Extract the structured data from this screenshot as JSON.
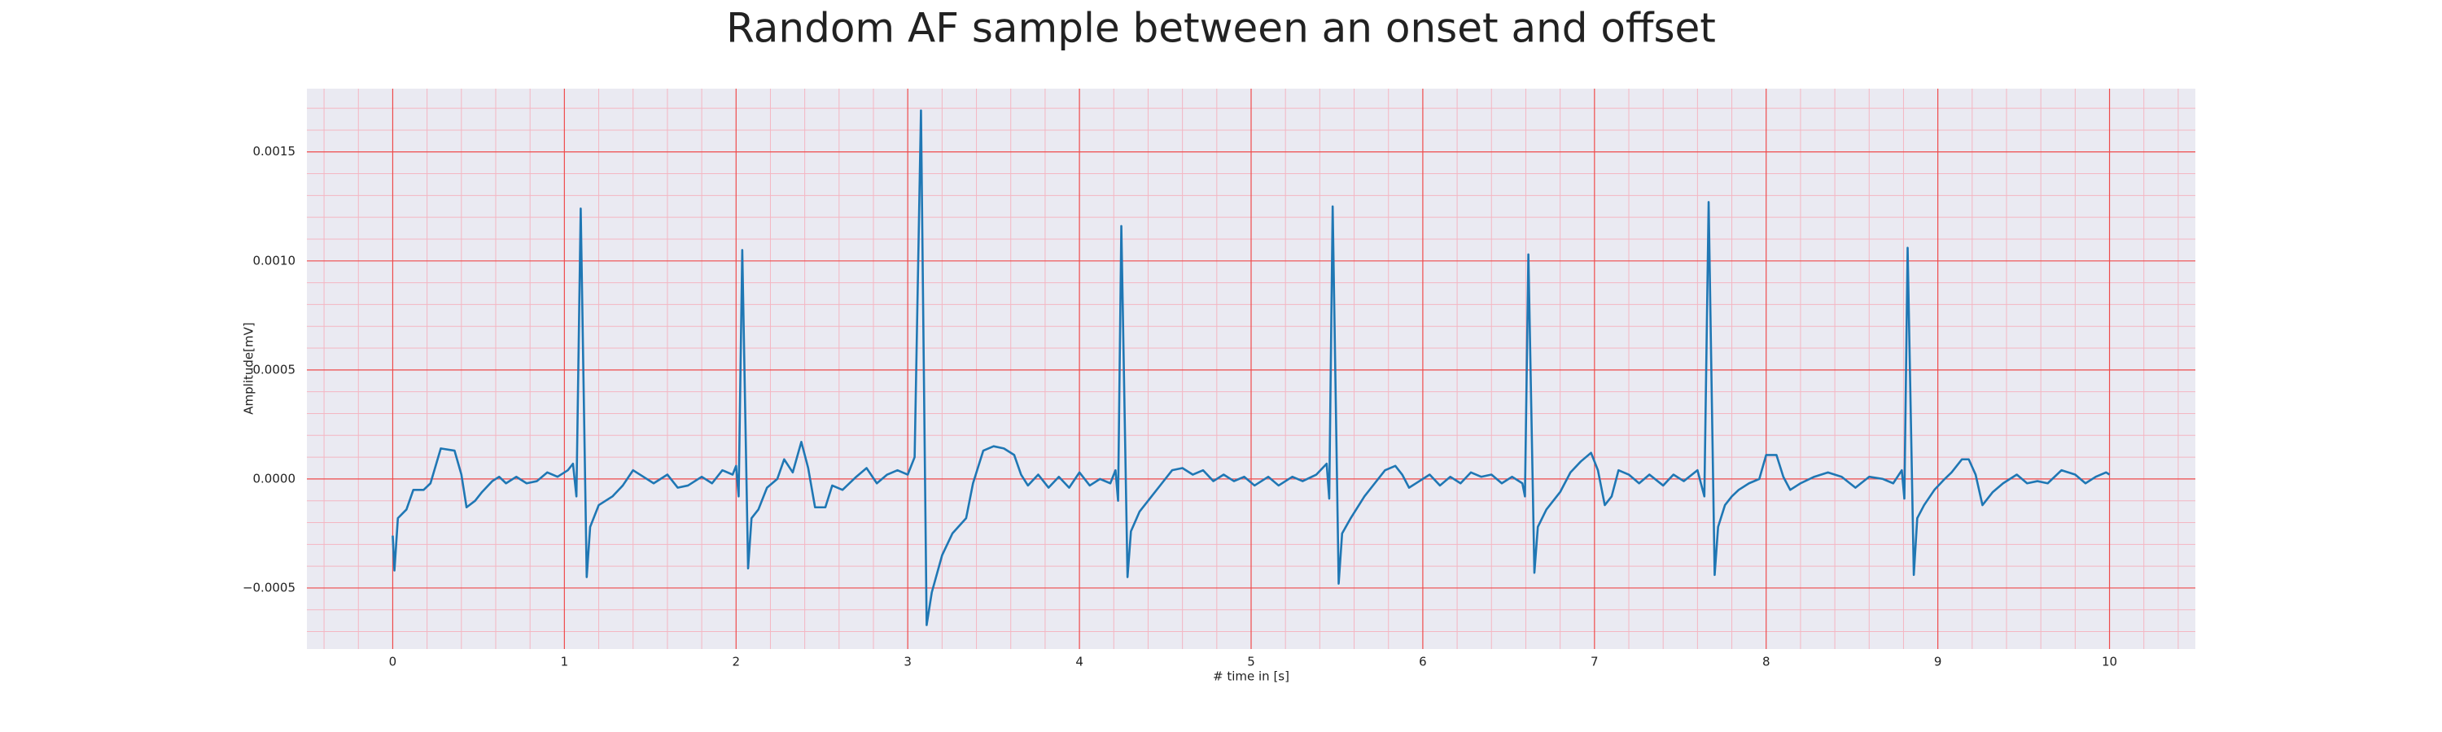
{
  "chart_data": {
    "type": "line",
    "title": "Random AF sample between an onset and offset",
    "xlabel": "# time in [s]",
    "ylabel": "Amplitude[mV]",
    "color": "#1f77b4",
    "grid": true,
    "minor_grid": true,
    "xlim": [
      -0.5,
      10.5
    ],
    "ylim": [
      -0.00078,
      0.00179
    ],
    "xticks": [
      0,
      1,
      2,
      3,
      4,
      5,
      6,
      7,
      8,
      9,
      10
    ],
    "yticks": [
      {
        "value": -0.0005,
        "label": "−0.0005"
      },
      {
        "value": 0,
        "label": "0.0000"
      },
      {
        "value": 0.0005,
        "label": "0.0005"
      },
      {
        "value": 0.001,
        "label": "0.0010"
      },
      {
        "value": 0.0015,
        "label": "0.0015"
      }
    ],
    "x": [
      0,
      0.01,
      0.03,
      0.08,
      0.12,
      0.18,
      0.22,
      0.28,
      0.36,
      0.4,
      0.43,
      0.48,
      0.52,
      0.58,
      0.62,
      0.66,
      0.72,
      0.78,
      0.84,
      0.9,
      0.96,
      1.02,
      1.05,
      1.07,
      1.095,
      1.13,
      1.15,
      1.2,
      1.28,
      1.34,
      1.4,
      1.46,
      1.52,
      1.6,
      1.66,
      1.72,
      1.8,
      1.86,
      1.92,
      1.98,
      2.0,
      2.015,
      2.036,
      2.07,
      2.09,
      2.13,
      2.18,
      2.24,
      2.28,
      2.33,
      2.38,
      2.42,
      2.46,
      2.52,
      2.56,
      2.62,
      2.7,
      2.76,
      2.82,
      2.88,
      2.94,
      3.0,
      3.04,
      3.077,
      3.11,
      3.14,
      3.2,
      3.26,
      3.34,
      3.38,
      3.44,
      3.5,
      3.56,
      3.62,
      3.66,
      3.7,
      3.76,
      3.82,
      3.88,
      3.94,
      4.0,
      4.06,
      4.12,
      4.18,
      4.21,
      4.225,
      4.244,
      4.28,
      4.3,
      4.35,
      4.42,
      4.48,
      4.54,
      4.6,
      4.66,
      4.72,
      4.78,
      4.84,
      4.9,
      4.96,
      5.02,
      5.1,
      5.16,
      5.24,
      5.3,
      5.38,
      5.44,
      5.455,
      5.475,
      5.51,
      5.53,
      5.58,
      5.66,
      5.72,
      5.78,
      5.84,
      5.88,
      5.92,
      5.98,
      6.04,
      6.1,
      6.16,
      6.22,
      6.28,
      6.34,
      6.4,
      6.46,
      6.52,
      6.58,
      6.595,
      6.615,
      6.65,
      6.67,
      6.72,
      6.8,
      6.86,
      6.92,
      6.98,
      7.02,
      7.06,
      7.1,
      7.14,
      7.2,
      7.26,
      7.32,
      7.4,
      7.46,
      7.52,
      7.6,
      7.64,
      7.665,
      7.7,
      7.72,
      7.76,
      7.8,
      7.84,
      7.9,
      7.96,
      8.0,
      8.06,
      8.1,
      8.14,
      8.2,
      8.28,
      8.36,
      8.44,
      8.52,
      8.6,
      8.68,
      8.74,
      8.79,
      8.805,
      8.824,
      8.86,
      8.88,
      8.92,
      8.98,
      9.04,
      9.08,
      9.14,
      9.18,
      9.22,
      9.26,
      9.32,
      9.38,
      9.46,
      9.52,
      9.58,
      9.64,
      9.72,
      9.8,
      9.86,
      9.92,
      9.98,
      10.0
    ],
    "values": [
      -0.00026,
      -0.00042,
      -0.00018,
      -0.00014,
      -5e-05,
      -5e-05,
      -2e-05,
      0.00014,
      0.00013,
      2e-05,
      -0.00013,
      -0.0001,
      -6e-05,
      -1e-05,
      1e-05,
      -2e-05,
      1e-05,
      -2e-05,
      -1e-05,
      3e-05,
      1e-05,
      4e-05,
      7e-05,
      -8e-05,
      0.00124,
      -0.00045,
      -0.00022,
      -0.00012,
      -8e-05,
      -3e-05,
      4e-05,
      1e-05,
      -2e-05,
      2e-05,
      -4e-05,
      -3e-05,
      1e-05,
      -2e-05,
      4e-05,
      2e-05,
      6e-05,
      -8e-05,
      0.00105,
      -0.00041,
      -0.00018,
      -0.00014,
      -4e-05,
      0,
      9e-05,
      3e-05,
      0.00017,
      5e-05,
      -0.00013,
      -0.00013,
      -3e-05,
      -5e-05,
      1e-05,
      5e-05,
      -2e-05,
      2e-05,
      4e-05,
      2e-05,
      0.0001,
      0.00169,
      -0.00067,
      -0.00052,
      -0.00035,
      -0.00025,
      -0.00018,
      -2e-05,
      0.00013,
      0.00015,
      0.00014,
      0.00011,
      2e-05,
      -3e-05,
      2e-05,
      -4e-05,
      1e-05,
      -4e-05,
      3e-05,
      -3e-05,
      0,
      -2e-05,
      4e-05,
      -0.0001,
      0.00116,
      -0.00045,
      -0.00024,
      -0.00015,
      -8e-05,
      -2e-05,
      4e-05,
      5e-05,
      2e-05,
      4e-05,
      -1e-05,
      2e-05,
      -1e-05,
      1e-05,
      -3e-05,
      1e-05,
      -3e-05,
      1e-05,
      -1e-05,
      2e-05,
      7e-05,
      -9e-05,
      0.00125,
      -0.00048,
      -0.00025,
      -0.00018,
      -8e-05,
      -2e-05,
      4e-05,
      6e-05,
      2e-05,
      -4e-05,
      -1e-05,
      2e-05,
      -3e-05,
      1e-05,
      -2e-05,
      3e-05,
      1e-05,
      2e-05,
      -2e-05,
      1e-05,
      -2e-05,
      -8e-05,
      0.00103,
      -0.00043,
      -0.00022,
      -0.00014,
      -6e-05,
      3e-05,
      8e-05,
      0.00012,
      4e-05,
      -0.00012,
      -8e-05,
      4e-05,
      2e-05,
      -2e-05,
      2e-05,
      -3e-05,
      2e-05,
      -1e-05,
      4e-05,
      -8e-05,
      0.00127,
      -0.00044,
      -0.00022,
      -0.00012,
      -8e-05,
      -5e-05,
      -2e-05,
      0,
      0.00011,
      0.00011,
      1e-05,
      -5e-05,
      -2e-05,
      1e-05,
      3e-05,
      1e-05,
      -4e-05,
      1e-05,
      0,
      -2e-05,
      4e-05,
      -9e-05,
      0.00106,
      -0.00044,
      -0.00018,
      -0.00012,
      -5e-05,
      0,
      3e-05,
      9e-05,
      9e-05,
      2e-05,
      -0.00012,
      -6e-05,
      -2e-05,
      2e-05,
      -2e-05,
      -1e-05,
      -2e-05,
      4e-05,
      2e-05,
      -2e-05,
      1e-05,
      3e-05,
      2e-05
    ]
  }
}
